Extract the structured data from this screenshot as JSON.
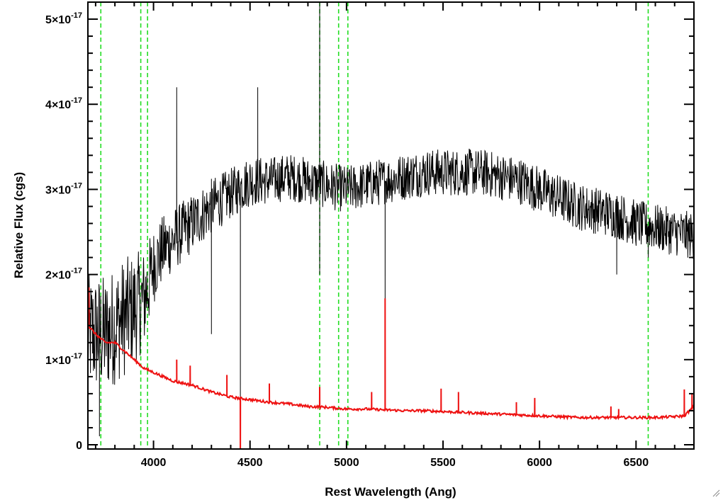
{
  "chart_data": {
    "type": "line",
    "title": "",
    "xlabel": "Rest Wavelength (Ang)",
    "ylabel": "Relative Flux (cgs)",
    "xlim": [
      3660,
      6800
    ],
    "ylim": [
      -0.05,
      5.2
    ],
    "y_unit_exponent": -17,
    "x_ticks": [
      4000,
      4500,
      5000,
      5500,
      6000,
      6500
    ],
    "x_tick_labels": [
      "4000",
      "4500",
      "5000",
      "5500",
      "6000",
      "6500"
    ],
    "y_ticks": [
      0,
      1,
      2,
      3,
      4,
      5
    ],
    "y_tick_labels": [
      {
        "mantissa": "0",
        "base": "",
        "exponent": ""
      },
      {
        "mantissa": "1",
        "base": "×10",
        "exponent": "-17"
      },
      {
        "mantissa": "2",
        "base": "×10",
        "exponent": "-17"
      },
      {
        "mantissa": "3",
        "base": "×10",
        "exponent": "-17"
      },
      {
        "mantissa": "4",
        "base": "×10",
        "exponent": "-17"
      },
      {
        "mantissa": "5",
        "base": "×10",
        "exponent": "-17"
      }
    ],
    "grid": false,
    "legend": "none",
    "series": [
      {
        "color": "#000000",
        "style": "noisy-line",
        "x": [
          3660,
          3700,
          3750,
          3800,
          3850,
          3900,
          3950,
          4000,
          4050,
          4100,
          4200,
          4300,
          4400,
          4500,
          4600,
          4700,
          4800,
          4900,
          5000,
          5100,
          5200,
          5300,
          5400,
          5500,
          5600,
          5700,
          5800,
          5900,
          6000,
          6100,
          6200,
          6300,
          6400,
          6500,
          6600,
          6700,
          6800
        ],
        "y": [
          1.3,
          1.3,
          1.3,
          1.4,
          1.5,
          1.6,
          1.7,
          2.1,
          2.3,
          2.4,
          2.6,
          2.8,
          2.95,
          3.1,
          3.1,
          3.15,
          3.1,
          3.05,
          3.0,
          3.05,
          3.1,
          3.15,
          3.2,
          3.2,
          3.2,
          3.2,
          3.15,
          3.1,
          3.0,
          2.9,
          2.8,
          2.75,
          2.7,
          2.6,
          2.55,
          2.5,
          2.45
        ],
        "noise_amplitude": [
          0.7,
          0.7,
          0.7,
          0.7,
          0.7,
          0.65,
          0.6,
          0.45,
          0.4,
          0.38,
          0.35,
          0.33,
          0.3,
          0.3,
          0.28,
          0.28,
          0.28,
          0.28,
          0.28,
          0.28,
          0.28,
          0.28,
          0.28,
          0.28,
          0.28,
          0.28,
          0.28,
          0.28,
          0.28,
          0.28,
          0.28,
          0.28,
          0.28,
          0.28,
          0.28,
          0.28,
          0.28
        ],
        "features": [
          {
            "x": 3720,
            "y": 0.1
          },
          {
            "x": 4120,
            "y": 4.2
          },
          {
            "x": 4300,
            "y": 1.3
          },
          {
            "x": 4450,
            "y": 0.0
          },
          {
            "x": 4540,
            "y": 4.2
          },
          {
            "x": 4861,
            "y": 5.2
          },
          {
            "x": 4861,
            "y": 2.0
          },
          {
            "x": 5200,
            "y": 0.9
          },
          {
            "x": 6400,
            "y": 2.0
          },
          {
            "x": 6563,
            "y": 2.2
          }
        ]
      },
      {
        "color": "#ee1111",
        "style": "line",
        "x": [
          3660,
          3700,
          3750,
          3800,
          3850,
          3900,
          3950,
          4000,
          4100,
          4200,
          4300,
          4400,
          4500,
          4600,
          4700,
          4800,
          4900,
          5000,
          5100,
          5200,
          5300,
          5400,
          5500,
          5600,
          5700,
          5800,
          5900,
          6000,
          6100,
          6200,
          6300,
          6400,
          6500,
          6600,
          6700,
          6750,
          6800
        ],
        "y": [
          1.4,
          1.3,
          1.2,
          1.2,
          1.1,
          1.0,
          0.9,
          0.85,
          0.75,
          0.7,
          0.62,
          0.56,
          0.53,
          0.5,
          0.48,
          0.45,
          0.44,
          0.42,
          0.42,
          0.41,
          0.4,
          0.4,
          0.39,
          0.38,
          0.37,
          0.36,
          0.35,
          0.34,
          0.33,
          0.32,
          0.32,
          0.32,
          0.32,
          0.32,
          0.33,
          0.34,
          0.45
        ],
        "spikes": [
          {
            "x": 3665,
            "y": 1.85
          },
          {
            "x": 4120,
            "y": 1.0
          },
          {
            "x": 4190,
            "y": 0.93
          },
          {
            "x": 4380,
            "y": 0.82
          },
          {
            "x": 4450,
            "y": -0.1
          },
          {
            "x": 4600,
            "y": 0.72
          },
          {
            "x": 4861,
            "y": 0.68
          },
          {
            "x": 5130,
            "y": 0.62
          },
          {
            "x": 5200,
            "y": 1.72
          },
          {
            "x": 5490,
            "y": 0.66
          },
          {
            "x": 5580,
            "y": 0.62
          },
          {
            "x": 5880,
            "y": 0.5
          },
          {
            "x": 5975,
            "y": 0.55
          },
          {
            "x": 6370,
            "y": 0.45
          },
          {
            "x": 6410,
            "y": 0.42
          },
          {
            "x": 6750,
            "y": 0.65
          },
          {
            "x": 6790,
            "y": 0.6
          }
        ]
      }
    ],
    "reference_lines": {
      "color": "#22dd22",
      "style": "dashed",
      "x": [
        3727,
        3934,
        3969,
        4861,
        4959,
        5007,
        6563
      ]
    }
  }
}
